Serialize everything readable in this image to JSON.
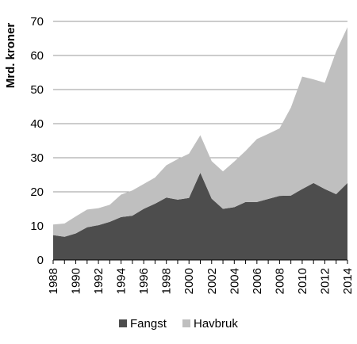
{
  "chart_data": {
    "type": "area",
    "stacked": true,
    "ylabel": "Mrd. kroner",
    "xlabel": "",
    "ylim": [
      0,
      70
    ],
    "yticks": [
      "0",
      "10",
      "20",
      "30",
      "40",
      "50",
      "60",
      "70"
    ],
    "xticks": [
      "1988",
      "1990",
      "1992",
      "1994",
      "1996",
      "1998",
      "2000",
      "2002",
      "2004",
      "2006",
      "2008",
      "2010",
      "2012",
      "2014"
    ],
    "x": [
      1988,
      1989,
      1990,
      1991,
      1992,
      1993,
      1994,
      1995,
      1996,
      1997,
      1998,
      1999,
      2000,
      2001,
      2002,
      2003,
      2004,
      2005,
      2006,
      2007,
      2008,
      2009,
      2010,
      2011,
      2012,
      2013,
      2014
    ],
    "series": [
      {
        "name": "Fangst",
        "color": "#4d4d4d",
        "values": [
          7.3,
          6.8,
          7.8,
          9.6,
          10.2,
          11.2,
          12.6,
          13.0,
          15.0,
          16.5,
          18.3,
          17.7,
          18.2,
          25.6,
          18.0,
          15.0,
          15.5,
          17.0,
          17.0,
          17.9,
          18.8,
          18.9,
          20.8,
          22.6,
          20.8,
          19.3,
          22.6
        ]
      },
      {
        "name": "Havbruk",
        "color": "#bfbfbf",
        "values": [
          3.1,
          3.9,
          5.0,
          5.2,
          5.0,
          5.0,
          6.6,
          7.4,
          7.3,
          7.7,
          9.5,
          11.9,
          13.0,
          11.0,
          11.0,
          11.0,
          13.4,
          15.0,
          18.5,
          19.1,
          19.8,
          25.8,
          33.0,
          30.4,
          31.2,
          41.9,
          45.7
        ]
      }
    ],
    "grid": "horizontal",
    "legend_position": "bottom"
  }
}
